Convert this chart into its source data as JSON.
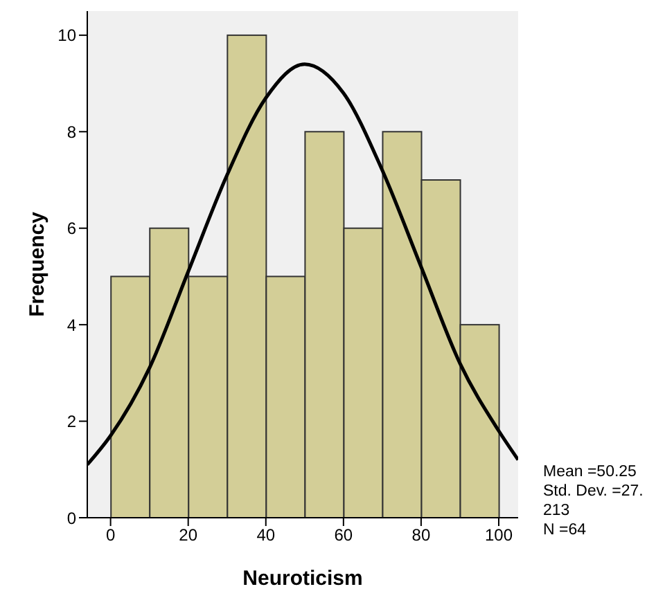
{
  "chart_data": {
    "type": "histogram",
    "xlabel": "Neuroticism",
    "ylabel": "Frequency",
    "bins": [
      0,
      10,
      20,
      30,
      40,
      50,
      60,
      70,
      80,
      90,
      100
    ],
    "values": [
      5,
      6,
      5,
      10,
      5,
      8,
      6,
      8,
      7,
      4
    ],
    "color": "#d3ce97",
    "series": [
      {
        "type": "line",
        "color": "#000000",
        "x": [
          -6,
          0,
          10,
          20,
          30,
          40,
          50,
          60,
          70,
          80,
          90,
          100,
          105
        ],
        "values": [
          1.1,
          1.7,
          3.1,
          5.1,
          7.1,
          8.7,
          9.4,
          8.8,
          7.2,
          5.2,
          3.2,
          1.8,
          1.2
        ]
      }
    ],
    "xlim": [
      -6,
      105
    ],
    "xticks": [
      0,
      20,
      40,
      60,
      80,
      100
    ],
    "ylim": [
      0,
      10.5
    ],
    "yticks": [
      0,
      2,
      4,
      6,
      8,
      10
    ],
    "grid": false,
    "legend": false,
    "annotations": [
      "Mean =50.25",
      "Std. Dev. =27.213",
      "N =64"
    ]
  }
}
